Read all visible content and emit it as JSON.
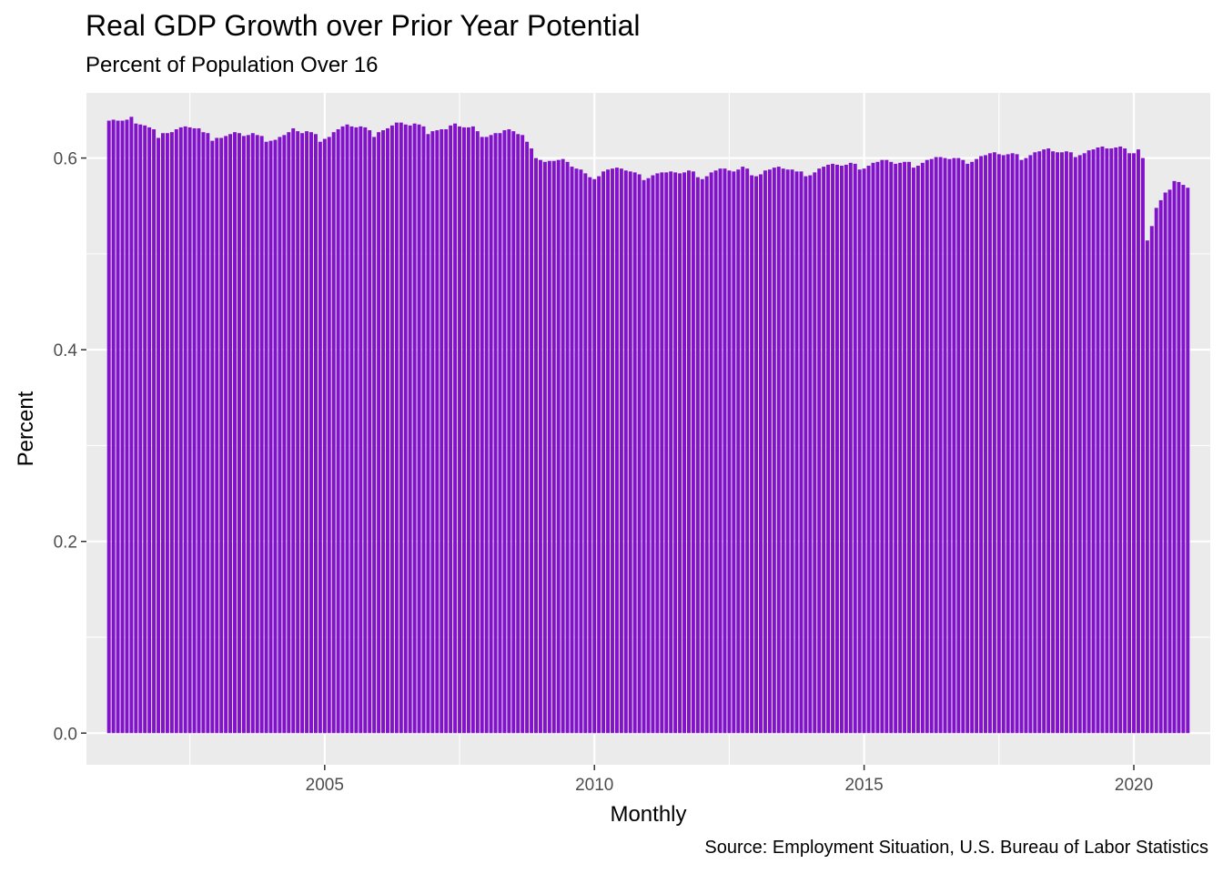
{
  "chart_data": {
    "type": "bar",
    "title": "Real GDP Growth over Prior Year Potential",
    "subtitle": "Percent of Population Over 16",
    "xlabel": "Monthly",
    "ylabel": "Percent",
    "caption": "Source: Employment Situation, U.S. Bureau of Labor Statistics",
    "bar_color": "#8112c9",
    "panel_background": "#ebebeb",
    "grid_color": "#ffffff",
    "grid": true,
    "legend": "none",
    "x_start": "2001-01",
    "x_end": "2021-01",
    "xlim": [
      "2000-08",
      "2021-06"
    ],
    "ylim": [
      -0.033,
      0.668
    ],
    "x_ticks": [
      {
        "date": "2005-01",
        "label": "2005"
      },
      {
        "date": "2010-01",
        "label": "2010"
      },
      {
        "date": "2015-01",
        "label": "2015"
      },
      {
        "date": "2020-01",
        "label": "2020"
      }
    ],
    "y_ticks": [
      {
        "value": 0.0,
        "label": "0.0"
      },
      {
        "value": 0.2,
        "label": "0.2"
      },
      {
        "value": 0.4,
        "label": "0.4"
      },
      {
        "value": 0.6,
        "label": "0.6"
      }
    ],
    "values": [
      0.639,
      0.64,
      0.639,
      0.639,
      0.64,
      0.643,
      0.636,
      0.635,
      0.634,
      0.632,
      0.63,
      0.621,
      0.626,
      0.626,
      0.627,
      0.63,
      0.632,
      0.633,
      0.632,
      0.631,
      0.631,
      0.627,
      0.626,
      0.618,
      0.621,
      0.621,
      0.623,
      0.625,
      0.627,
      0.626,
      0.623,
      0.624,
      0.626,
      0.624,
      0.623,
      0.617,
      0.618,
      0.619,
      0.622,
      0.624,
      0.627,
      0.631,
      0.628,
      0.626,
      0.628,
      0.627,
      0.625,
      0.617,
      0.62,
      0.622,
      0.627,
      0.63,
      0.633,
      0.635,
      0.633,
      0.632,
      0.633,
      0.632,
      0.629,
      0.622,
      0.627,
      0.629,
      0.631,
      0.634,
      0.637,
      0.637,
      0.635,
      0.634,
      0.636,
      0.635,
      0.633,
      0.625,
      0.628,
      0.629,
      0.63,
      0.63,
      0.634,
      0.636,
      0.633,
      0.632,
      0.632,
      0.633,
      0.628,
      0.622,
      0.622,
      0.624,
      0.626,
      0.626,
      0.629,
      0.63,
      0.628,
      0.625,
      0.624,
      0.617,
      0.61,
      0.6,
      0.598,
      0.596,
      0.597,
      0.597,
      0.598,
      0.599,
      0.596,
      0.591,
      0.589,
      0.588,
      0.584,
      0.58,
      0.578,
      0.581,
      0.586,
      0.588,
      0.589,
      0.59,
      0.589,
      0.587,
      0.586,
      0.585,
      0.583,
      0.577,
      0.579,
      0.582,
      0.584,
      0.585,
      0.585,
      0.586,
      0.585,
      0.584,
      0.585,
      0.587,
      0.586,
      0.58,
      0.578,
      0.581,
      0.585,
      0.587,
      0.589,
      0.589,
      0.587,
      0.586,
      0.588,
      0.591,
      0.589,
      0.582,
      0.581,
      0.583,
      0.587,
      0.588,
      0.59,
      0.591,
      0.589,
      0.588,
      0.588,
      0.586,
      0.586,
      0.581,
      0.582,
      0.585,
      0.589,
      0.591,
      0.593,
      0.594,
      0.593,
      0.592,
      0.593,
      0.595,
      0.594,
      0.588,
      0.589,
      0.592,
      0.595,
      0.596,
      0.598,
      0.598,
      0.596,
      0.594,
      0.595,
      0.596,
      0.596,
      0.59,
      0.592,
      0.595,
      0.598,
      0.599,
      0.601,
      0.601,
      0.6,
      0.599,
      0.6,
      0.6,
      0.598,
      0.594,
      0.596,
      0.599,
      0.602,
      0.603,
      0.605,
      0.606,
      0.604,
      0.603,
      0.604,
      0.605,
      0.604,
      0.598,
      0.6,
      0.603,
      0.606,
      0.607,
      0.609,
      0.61,
      0.607,
      0.606,
      0.606,
      0.607,
      0.606,
      0.601,
      0.603,
      0.605,
      0.608,
      0.609,
      0.611,
      0.612,
      0.61,
      0.61,
      0.611,
      0.612,
      0.61,
      0.605,
      0.605,
      0.609,
      0.6,
      0.514,
      0.529,
      0.548,
      0.556,
      0.564,
      0.567,
      0.576,
      0.575,
      0.572,
      0.569
    ]
  }
}
